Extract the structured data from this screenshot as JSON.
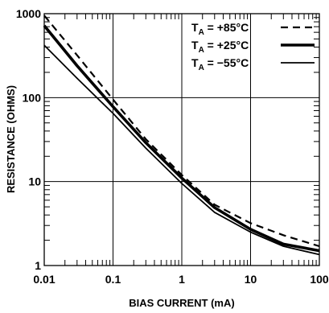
{
  "chart_data": {
    "type": "line",
    "xlabel": "BIAS CURRENT (mA)",
    "ylabel": "RESISTANCE (OHMS)",
    "xscale": "log",
    "yscale": "log",
    "xlim": [
      0.01,
      100
    ],
    "ylim": [
      1,
      1000
    ],
    "grid": true,
    "legend_position": "top-right",
    "x_ticks": [
      {
        "value": 0.01,
        "label": "0.01"
      },
      {
        "value": 0.1,
        "label": "0.1"
      },
      {
        "value": 1,
        "label": "1"
      },
      {
        "value": 10,
        "label": "10"
      },
      {
        "value": 100,
        "label": "100"
      }
    ],
    "y_ticks": [
      {
        "value": 1,
        "label": "1"
      },
      {
        "value": 10,
        "label": "10"
      },
      {
        "value": 100,
        "label": "100"
      },
      {
        "value": 1000,
        "label": "1000"
      }
    ],
    "series": [
      {
        "name": "T_A = +85°C",
        "name_parts": {
          "main": "T",
          "sub": "A",
          "rest": " = +85°C"
        },
        "style": "dashed",
        "x": [
          0.01,
          0.03,
          0.1,
          0.3,
          1,
          3,
          10,
          30,
          100
        ],
        "y": [
          950,
          320,
          95,
          32,
          12,
          5.3,
          3.2,
          2.3,
          1.7
        ]
      },
      {
        "name": "T_A = +25°C",
        "name_parts": {
          "main": "T",
          "sub": "A",
          "rest": " = +25°C"
        },
        "style": "thick",
        "x": [
          0.01,
          0.03,
          0.1,
          0.3,
          1,
          3,
          10,
          30,
          100
        ],
        "y": [
          720,
          240,
          78,
          29,
          11,
          4.9,
          2.7,
          1.8,
          1.5
        ]
      },
      {
        "name": "T_A = -55°C",
        "name_parts": {
          "main": "T",
          "sub": "A",
          "rest": " = −55°C"
        },
        "style": "thin",
        "x": [
          0.01,
          0.03,
          0.1,
          0.3,
          1,
          3,
          10,
          30,
          100
        ],
        "y": [
          420,
          170,
          65,
          25,
          9.5,
          4.3,
          2.5,
          1.7,
          1.35
        ]
      }
    ]
  }
}
